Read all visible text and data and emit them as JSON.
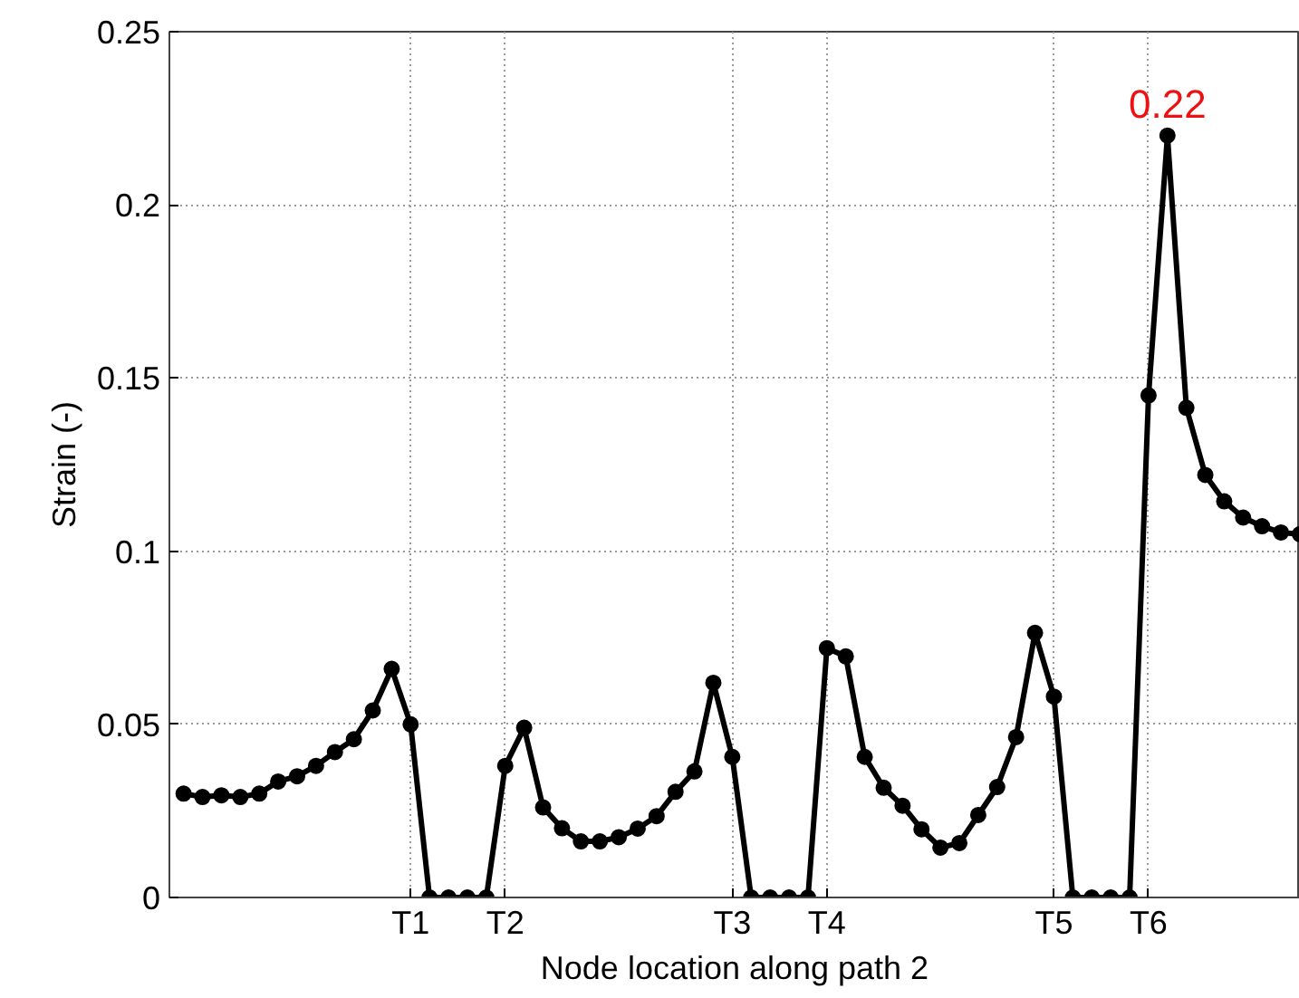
{
  "chart_data": {
    "type": "line",
    "xlabel": "Node location along path 2",
    "ylabel": "Strain (-)",
    "categories": [
      null,
      null,
      null,
      null,
      null,
      null,
      null,
      null,
      null,
      null,
      null,
      null,
      "T1",
      null,
      null,
      null,
      null,
      "T2",
      null,
      null,
      null,
      null,
      null,
      null,
      null,
      null,
      null,
      null,
      null,
      "T3",
      null,
      null,
      null,
      null,
      "T4",
      null,
      null,
      null,
      null,
      null,
      null,
      null,
      null,
      null,
      null,
      null,
      "T5",
      null,
      null,
      null,
      null,
      "T6",
      null,
      null,
      null,
      null,
      null,
      null,
      null,
      null
    ],
    "series": [
      {
        "color": "#000000",
        "values": [
          0.03,
          0.029,
          0.0295,
          0.029,
          0.03,
          0.0335,
          0.035,
          0.038,
          0.042,
          0.0457,
          0.054,
          0.066,
          0.05,
          0,
          0,
          0,
          0,
          0.038,
          0.049,
          0.026,
          0.02,
          0.0162,
          0.0162,
          0.0174,
          0.0199,
          0.0235,
          0.0305,
          0.0364,
          0.062,
          0.0406,
          0,
          0,
          0,
          0,
          0.072,
          0.0696,
          0.0406,
          0.0317,
          0.0265,
          0.0197,
          0.0144,
          0.0157,
          0.0238,
          0.0319,
          0.0463,
          0.0764,
          0.058,
          0,
          0,
          0,
          0,
          0.145,
          0.22,
          0.1414,
          0.122,
          0.1144,
          0.1097,
          0.1072,
          0.1054,
          0.1049
        ],
        "value_labels": [
          null,
          null,
          null,
          null,
          null,
          null,
          null,
          null,
          null,
          null,
          null,
          null,
          null,
          null,
          null,
          null,
          null,
          null,
          null,
          null,
          null,
          null,
          null,
          null,
          null,
          null,
          null,
          null,
          null,
          null,
          null,
          null,
          null,
          null,
          null,
          null,
          null,
          null,
          null,
          null,
          null,
          null,
          null,
          null,
          null,
          null,
          null,
          null,
          null,
          null,
          null,
          null,
          "0.22",
          null,
          null,
          null,
          null,
          null,
          null,
          null
        ]
      }
    ],
    "ylim": [
      0,
      0.25
    ],
    "yticks": [
      0,
      0.05,
      0.1,
      0.15,
      0.2,
      0.25
    ],
    "grid": true,
    "marker": "circle",
    "line_style": "solid"
  }
}
